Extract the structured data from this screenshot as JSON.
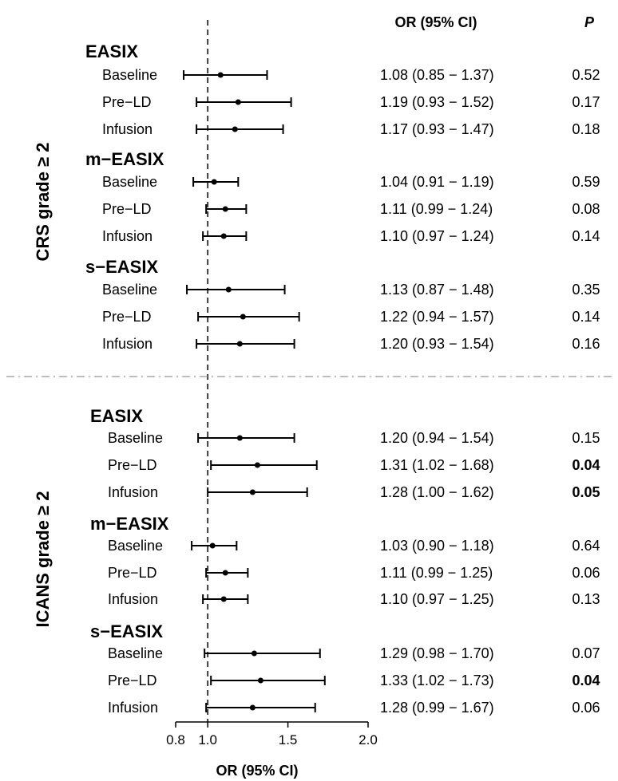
{
  "chart_data": {
    "type": "forest",
    "header_ci": "OR (95% CI)",
    "header_p": "P",
    "xlabel": "OR (95% CI)",
    "xlim": [
      0.8,
      2.0
    ],
    "x_ticks": [
      "0.8",
      "1.0",
      "1.5",
      "2.0"
    ],
    "reference_line": 1.0,
    "sections": [
      {
        "title": "CRS grade ≥ 2",
        "groups": [
          {
            "name": "EASIX",
            "rows": [
              {
                "label": "Baseline",
                "or": 1.08,
                "lo": 0.85,
                "hi": 1.37,
                "ci_text": "1.08 (0.85 − 1.37)",
                "p": "0.52",
                "bold": false
              },
              {
                "label": "Pre−LD",
                "or": 1.19,
                "lo": 0.93,
                "hi": 1.52,
                "ci_text": "1.19 (0.93 − 1.52)",
                "p": "0.17",
                "bold": false
              },
              {
                "label": "Infusion",
                "or": 1.17,
                "lo": 0.93,
                "hi": 1.47,
                "ci_text": "1.17 (0.93 − 1.47)",
                "p": "0.18",
                "bold": false
              }
            ]
          },
          {
            "name": "m−EASIX",
            "rows": [
              {
                "label": "Baseline",
                "or": 1.04,
                "lo": 0.91,
                "hi": 1.19,
                "ci_text": "1.04 (0.91 − 1.19)",
                "p": "0.59",
                "bold": false
              },
              {
                "label": "Pre−LD",
                "or": 1.11,
                "lo": 0.99,
                "hi": 1.24,
                "ci_text": "1.11 (0.99 − 1.24)",
                "p": "0.08",
                "bold": false
              },
              {
                "label": "Infusion",
                "or": 1.1,
                "lo": 0.97,
                "hi": 1.24,
                "ci_text": "1.10 (0.97 − 1.24)",
                "p": "0.14",
                "bold": false
              }
            ]
          },
          {
            "name": "s−EASIX",
            "rows": [
              {
                "label": "Baseline",
                "or": 1.13,
                "lo": 0.87,
                "hi": 1.48,
                "ci_text": "1.13 (0.87 − 1.48)",
                "p": "0.35",
                "bold": false
              },
              {
                "label": "Pre−LD",
                "or": 1.22,
                "lo": 0.94,
                "hi": 1.57,
                "ci_text": "1.22 (0.94 − 1.57)",
                "p": "0.14",
                "bold": false
              },
              {
                "label": "Infusion",
                "or": 1.2,
                "lo": 0.93,
                "hi": 1.54,
                "ci_text": "1.20 (0.93 − 1.54)",
                "p": "0.16",
                "bold": false
              }
            ]
          }
        ]
      },
      {
        "title": "ICANS grade ≥ 2",
        "groups": [
          {
            "name": "EASIX",
            "rows": [
              {
                "label": "Baseline",
                "or": 1.2,
                "lo": 0.94,
                "hi": 1.54,
                "ci_text": "1.20 (0.94 − 1.54)",
                "p": "0.15",
                "bold": false
              },
              {
                "label": "Pre−LD",
                "or": 1.31,
                "lo": 1.02,
                "hi": 1.68,
                "ci_text": "1.31 (1.02 − 1.68)",
                "p": "0.04",
                "bold": true
              },
              {
                "label": "Infusion",
                "or": 1.28,
                "lo": 1.0,
                "hi": 1.62,
                "ci_text": "1.28 (1.00 − 1.62)",
                "p": "0.05",
                "bold": true
              }
            ]
          },
          {
            "name": "m−EASIX",
            "rows": [
              {
                "label": "Baseline",
                "or": 1.03,
                "lo": 0.9,
                "hi": 1.18,
                "ci_text": "1.03 (0.90 − 1.18)",
                "p": "0.64",
                "bold": false
              },
              {
                "label": "Pre−LD",
                "or": 1.11,
                "lo": 0.99,
                "hi": 1.25,
                "ci_text": "1.11 (0.99 − 1.25)",
                "p": "0.06",
                "bold": false
              },
              {
                "label": "Infusion",
                "or": 1.1,
                "lo": 0.97,
                "hi": 1.25,
                "ci_text": "1.10 (0.97 − 1.25)",
                "p": "0.13",
                "bold": false
              }
            ]
          },
          {
            "name": "s−EASIX",
            "rows": [
              {
                "label": "Baseline",
                "or": 1.29,
                "lo": 0.98,
                "hi": 1.7,
                "ci_text": "1.29 (0.98 − 1.70)",
                "p": "0.07",
                "bold": false
              },
              {
                "label": "Pre−LD",
                "or": 1.33,
                "lo": 1.02,
                "hi": 1.73,
                "ci_text": "1.33 (1.02 − 1.73)",
                "p": "0.04",
                "bold": true
              },
              {
                "label": "Infusion",
                "or": 1.28,
                "lo": 0.99,
                "hi": 1.67,
                "ci_text": "1.28 (0.99 − 1.67)",
                "p": "0.06",
                "bold": false
              }
            ]
          }
        ]
      }
    ]
  }
}
